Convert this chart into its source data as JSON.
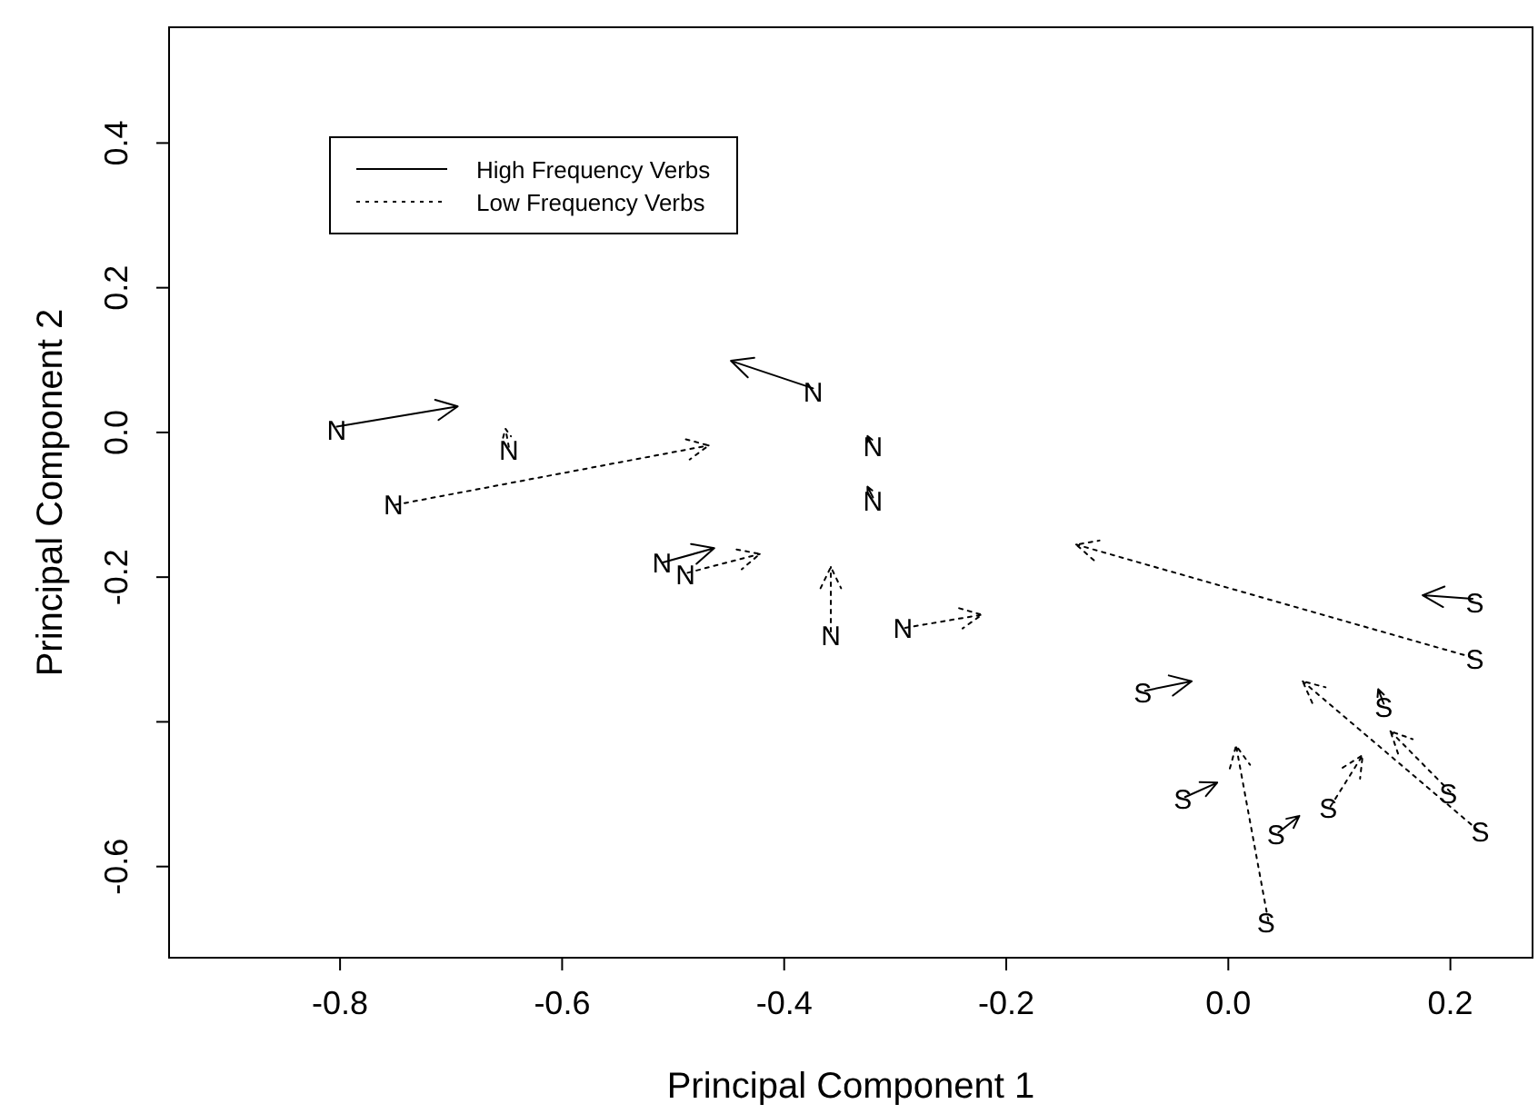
{
  "chart_data": {
    "type": "line",
    "xlabel": "Principal Component 1",
    "ylabel": "Principal Component 2",
    "xlim": [
      -0.954,
      0.274
    ],
    "ylim": [
      -0.726,
      0.56
    ],
    "xticks": [
      -0.8,
      -0.6,
      -0.4,
      -0.2,
      {
        "value": 0,
        "label": "0.0"
      },
      0.2
    ],
    "yticks": [
      {
        "value": -0.6,
        "label": "-0.6"
      },
      {
        "value": -0.4,
        "label": null
      },
      -0.2,
      {
        "value": 0,
        "label": "0.0"
      },
      0.2,
      0.4
    ],
    "legend": "top left",
    "grid": false,
    "series": [
      {
        "name": "High Frequency Verbs",
        "color": "#000000",
        "line_style": "solid",
        "x": [
          -0.803,
          -0.694
        ],
        "values": [
          0.008,
          0.036
        ]
      },
      {
        "color": "#000000",
        "line_style": "solid",
        "x": [
          -0.374,
          -0.448
        ],
        "values": [
          0.061,
          0.099
        ]
      },
      {
        "color": "#000000",
        "line_style": "solid",
        "x": [
          -0.32,
          -0.325
        ],
        "values": [
          -0.02,
          -0.005
        ]
      },
      {
        "color": "#000000",
        "line_style": "solid",
        "x": [
          -0.32,
          -0.325
        ],
        "values": [
          -0.09,
          -0.075
        ]
      },
      {
        "color": "#000000",
        "line_style": "solid",
        "x": [
          -0.51,
          -0.463
        ],
        "values": [
          -0.18,
          -0.16
        ]
      },
      {
        "color": "#000000",
        "line_style": "solid",
        "x": [
          0.22,
          0.175
        ],
        "values": [
          -0.23,
          -0.225
        ]
      },
      {
        "color": "#000000",
        "line_style": "solid",
        "x": [
          -0.075,
          -0.033
        ],
        "values": [
          -0.357,
          -0.344
        ]
      },
      {
        "color": "#000000",
        "line_style": "solid",
        "x": [
          -0.039,
          -0.01
        ],
        "values": [
          -0.504,
          -0.484
        ]
      },
      {
        "color": "#000000",
        "line_style": "solid",
        "x": [
          0.045,
          0.064
        ],
        "values": [
          -0.553,
          -0.53
        ]
      },
      {
        "color": "#000000",
        "line_style": "solid",
        "x": [
          0.14,
          0.135
        ],
        "values": [
          -0.375,
          -0.355
        ]
      },
      {
        "name": "Low Frequency Verbs",
        "color": "#000000",
        "line_style": "dotted",
        "x": [
          -0.75,
          -0.468
        ],
        "values": [
          -0.1,
          -0.018
        ]
      },
      {
        "color": "#000000",
        "line_style": "dotted",
        "x": [
          -0.648,
          -0.651
        ],
        "values": [
          -0.02,
          0.005
        ]
      },
      {
        "color": "#000000",
        "line_style": "dotted",
        "x": [
          -0.487,
          -0.422
        ],
        "values": [
          -0.194,
          -0.168
        ]
      },
      {
        "color": "#000000",
        "line_style": "dotted",
        "x": [
          -0.358,
          -0.358
        ],
        "values": [
          -0.275,
          -0.186
        ]
      },
      {
        "color": "#000000",
        "line_style": "dotted",
        "x": [
          -0.291,
          -0.222
        ],
        "values": [
          -0.27,
          -0.252
        ]
      },
      {
        "color": "#000000",
        "line_style": "dotted",
        "x": [
          0.22,
          -0.137
        ],
        "values": [
          -0.311,
          -0.155
        ]
      },
      {
        "color": "#000000",
        "line_style": "dotted",
        "x": [
          0.225,
          0.067
        ],
        "values": [
          -0.55,
          -0.344
        ]
      },
      {
        "color": "#000000",
        "line_style": "dotted",
        "x": [
          0.2,
          0.146
        ],
        "values": [
          -0.497,
          -0.413
        ]
      },
      {
        "color": "#000000",
        "line_style": "dotted",
        "x": [
          0.036,
          0.007
        ],
        "values": [
          -0.675,
          -0.433
        ]
      },
      {
        "color": "#000000",
        "line_style": "dotted",
        "x": [
          0.092,
          0.121
        ],
        "values": [
          -0.517,
          -0.446
        ]
      }
    ],
    "annotations": [
      {
        "text": "N",
        "x": -0.803,
        "y": 0.003
      },
      {
        "text": "N",
        "x": -0.374,
        "y": 0.056
      },
      {
        "text": "N",
        "x": -0.32,
        "y": -0.02
      },
      {
        "text": "N",
        "x": -0.32,
        "y": -0.095
      },
      {
        "text": "N",
        "x": -0.51,
        "y": -0.18
      },
      {
        "text": "S",
        "x": 0.222,
        "y": -0.235
      },
      {
        "text": "S",
        "x": -0.077,
        "y": -0.36
      },
      {
        "text": "S",
        "x": -0.041,
        "y": -0.507
      },
      {
        "text": "S",
        "x": 0.043,
        "y": -0.556
      },
      {
        "text": "S",
        "x": 0.14,
        "y": -0.38
      },
      {
        "text": "N",
        "x": -0.752,
        "y": -0.1
      },
      {
        "text": "N",
        "x": -0.648,
        "y": -0.025
      },
      {
        "text": "N",
        "x": -0.489,
        "y": -0.196
      },
      {
        "text": "N",
        "x": -0.358,
        "y": -0.28
      },
      {
        "text": "N",
        "x": -0.293,
        "y": -0.27
      },
      {
        "text": "S",
        "x": 0.222,
        "y": -0.313
      },
      {
        "text": "S",
        "x": 0.227,
        "y": -0.552
      },
      {
        "text": "S",
        "x": 0.198,
        "y": -0.499
      },
      {
        "text": "S",
        "x": 0.034,
        "y": -0.677
      },
      {
        "text": "S",
        "x": 0.09,
        "y": -0.519
      }
    ]
  }
}
